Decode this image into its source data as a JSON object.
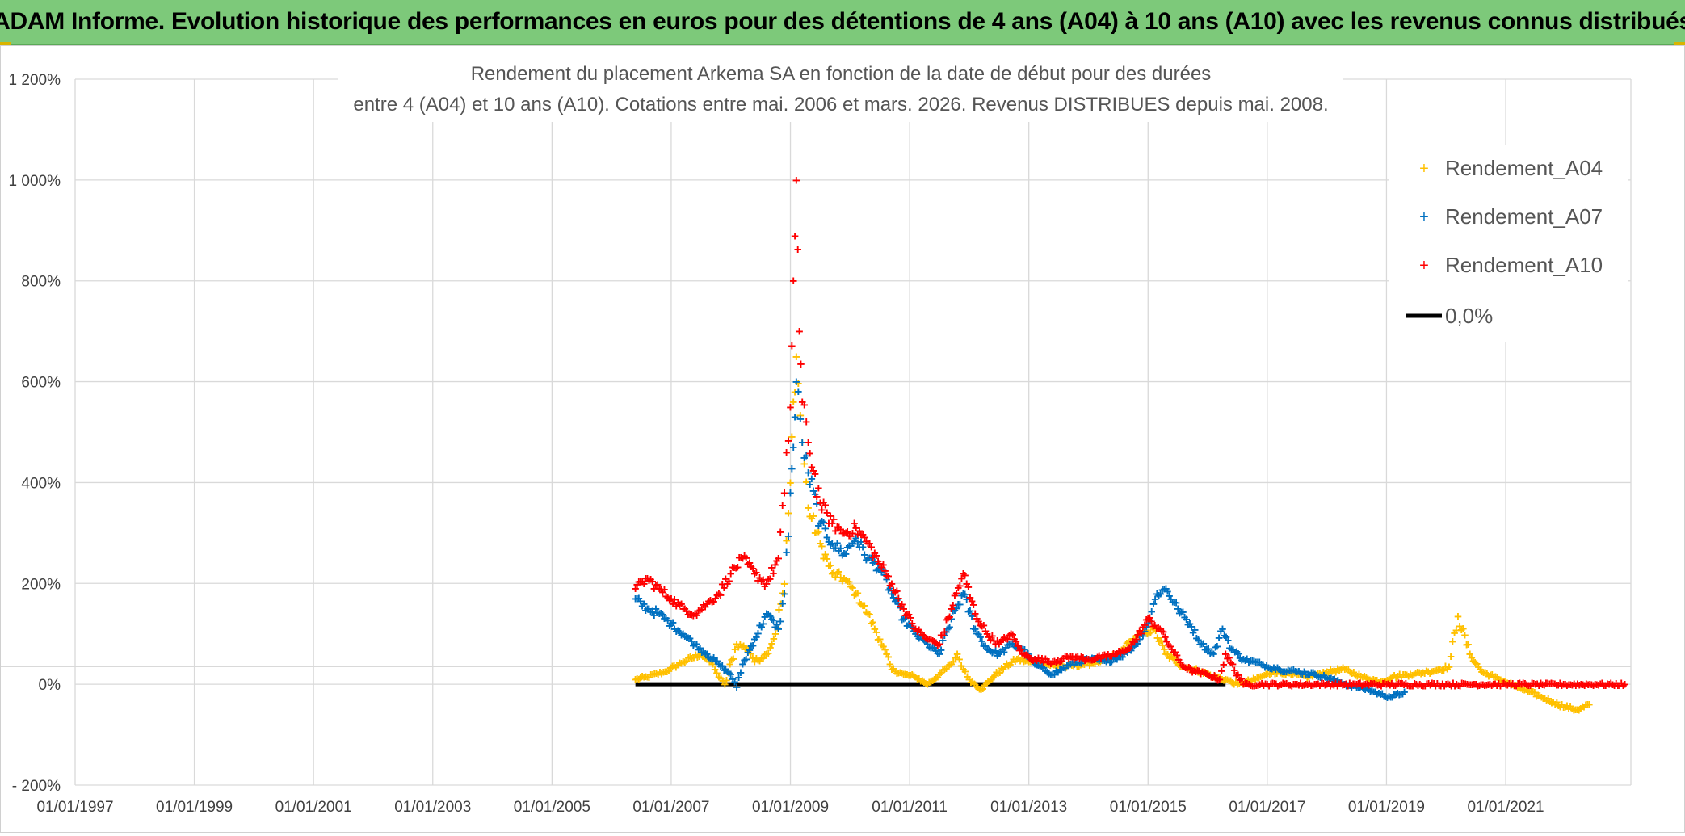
{
  "banner": {
    "title": "ADAM Informe. Evolution historique des performances en euros pour des détentions de 4 ans (A04) à 10 ans (A10) avec les revenus connus distribués"
  },
  "chart_data": {
    "type": "scatter",
    "title_lines": [
      "Rendement du placement Arkema SA en fonction de la date de début pour des durées",
      "entre 4 (A04) et 10 ans (A10). Cotations entre mai. 2006 et mars. 2026. Revenus DISTRIBUES depuis mai. 2008."
    ],
    "x_tick_labels": [
      "01/01/1997",
      "01/01/1999",
      "01/01/2001",
      "01/01/2003",
      "01/01/2005",
      "01/01/2007",
      "01/01/2009",
      "01/01/2011",
      "01/01/2013",
      "01/01/2015",
      "01/01/2017",
      "01/01/2019",
      "01/01/2021"
    ],
    "x_range_years": [
      1997,
      2023.1
    ],
    "y_tick_values": [
      -200,
      0,
      200,
      400,
      600,
      800,
      1000,
      1200
    ],
    "y_tick_labels": [
      "- 200%",
      "0%",
      "200%",
      "400%",
      "600%",
      "800%",
      "1 000%",
      "1 200%"
    ],
    "ylim": [
      -200,
      1200
    ],
    "reference_line_value": 35,
    "legend_position": "top-right",
    "marker": "+",
    "series": [
      {
        "name": "Rendement_A04",
        "color": "#ffc000",
        "x": [
          2006.4,
          2006.6,
          2006.9,
          2007.2,
          2007.5,
          2007.7,
          2007.8,
          2007.9,
          2008.1,
          2008.3,
          2008.4,
          2008.6,
          2008.75,
          2008.9,
          2009.0,
          2009.05,
          2009.1,
          2009.2,
          2009.3,
          2009.5,
          2009.7,
          2009.9,
          2010.1,
          2010.3,
          2010.5,
          2010.7,
          2010.9,
          2011.1,
          2011.3,
          2011.5,
          2011.7,
          2011.8,
          2011.9,
          2012.0,
          2012.2,
          2012.4,
          2012.6,
          2012.8,
          2013.0,
          2013.3,
          2013.6,
          2013.9,
          2014.2,
          2014.5,
          2014.7,
          2014.9,
          2015.1,
          2015.3,
          2015.6,
          2015.9,
          2016.1,
          2016.3,
          2016.5,
          2016.8,
          2017.1,
          2017.4,
          2017.7,
          2018.0,
          2018.3,
          2018.6,
          2018.9,
          2019.1,
          2019.4,
          2019.7,
          2019.9,
          2020.05,
          2020.2,
          2020.4,
          2020.6,
          2020.8,
          2021.0,
          2021.2,
          2021.4,
          2021.6,
          2021.8,
          2022.0,
          2022.2,
          2022.4
        ],
        "y": [
          10,
          15,
          25,
          45,
          60,
          40,
          15,
          0,
          80,
          70,
          45,
          60,
          100,
          200,
          400,
          560,
          650,
          480,
          350,
          280,
          220,
          210,
          180,
          140,
          90,
          30,
          20,
          15,
          0,
          20,
          40,
          60,
          30,
          10,
          -10,
          15,
          35,
          50,
          45,
          40,
          35,
          40,
          45,
          60,
          85,
          100,
          110,
          60,
          35,
          25,
          15,
          10,
          0,
          10,
          25,
          20,
          15,
          25,
          30,
          15,
          5,
          15,
          20,
          25,
          30,
          35,
          135,
          60,
          25,
          15,
          5,
          -5,
          -15,
          -25,
          -35,
          -45,
          -50,
          -40
        ]
      },
      {
        "name": "Rendement_A07",
        "color": "#0070c0",
        "x": [
          2006.4,
          2006.6,
          2006.8,
          2007.0,
          2007.2,
          2007.4,
          2007.6,
          2007.8,
          2008.0,
          2008.1,
          2008.2,
          2008.4,
          2008.6,
          2008.8,
          2008.9,
          2009.0,
          2009.05,
          2009.1,
          2009.2,
          2009.3,
          2009.5,
          2009.7,
          2009.9,
          2010.1,
          2010.3,
          2010.5,
          2010.7,
          2010.9,
          2011.1,
          2011.3,
          2011.5,
          2011.7,
          2011.9,
          2012.1,
          2012.3,
          2012.5,
          2012.7,
          2012.9,
          2013.1,
          2013.4,
          2013.7,
          2014.0,
          2014.3,
          2014.6,
          2014.8,
          2015.0,
          2015.15,
          2015.3,
          2015.5,
          2015.7,
          2015.9,
          2016.1,
          2016.25,
          2016.4,
          2016.6,
          2016.9,
          2017.2,
          2017.5,
          2017.8,
          2018.1,
          2018.3,
          2018.5,
          2018.7,
          2018.9,
          2019.1,
          2019.3
        ],
        "y": [
          170,
          150,
          140,
          120,
          100,
          80,
          60,
          40,
          20,
          -5,
          40,
          90,
          140,
          110,
          180,
          380,
          470,
          600,
          480,
          420,
          320,
          280,
          260,
          290,
          250,
          230,
          180,
          130,
          100,
          80,
          60,
          130,
          180,
          110,
          70,
          60,
          80,
          70,
          40,
          20,
          40,
          50,
          45,
          60,
          80,
          120,
          180,
          190,
          150,
          120,
          80,
          60,
          110,
          70,
          50,
          40,
          30,
          25,
          20,
          10,
          0,
          -5,
          -10,
          -20,
          -25,
          -15
        ]
      },
      {
        "name": "Rendement_A10",
        "color": "#ff0000",
        "x": [
          2006.4,
          2006.6,
          2006.8,
          2007.0,
          2007.2,
          2007.4,
          2007.6,
          2007.8,
          2008.0,
          2008.2,
          2008.4,
          2008.6,
          2008.8,
          2008.9,
          2009.0,
          2009.05,
          2009.1,
          2009.15,
          2009.2,
          2009.3,
          2009.5,
          2009.7,
          2009.9,
          2010.1,
          2010.3,
          2010.5,
          2010.7,
          2010.9,
          2011.1,
          2011.3,
          2011.5,
          2011.7,
          2011.9,
          2012.1,
          2012.3,
          2012.5,
          2012.7,
          2012.9,
          2013.1,
          2013.4,
          2013.7,
          2014.0,
          2014.3,
          2014.6,
          2014.8,
          2015.0,
          2015.2,
          2015.4,
          2015.6,
          2015.8,
          2016.0,
          2016.2,
          2016.3,
          2016.6,
          2017.0,
          2017.5,
          2018.0,
          2018.5,
          2019.0,
          2019.5,
          2020.0,
          2020.5,
          2021.0,
          2021.5,
          2022.0,
          2022.5,
          2023.0
        ],
        "y": [
          190,
          210,
          190,
          170,
          150,
          140,
          160,
          180,
          220,
          250,
          220,
          200,
          250,
          380,
          550,
          800,
          1000,
          700,
          560,
          480,
          360,
          320,
          300,
          310,
          280,
          240,
          200,
          150,
          110,
          90,
          80,
          150,
          220,
          140,
          100,
          80,
          100,
          60,
          50,
          45,
          55,
          50,
          55,
          65,
          90,
          130,
          110,
          70,
          35,
          25,
          20,
          10,
          60,
          0,
          0,
          0,
          0,
          0,
          0,
          0,
          0,
          0,
          0,
          0,
          0,
          0,
          0
        ]
      },
      {
        "name": "0,0%",
        "color": "#000000",
        "line": true,
        "x": [
          2006.4,
          2016.3
        ],
        "y": [
          0,
          0
        ]
      }
    ]
  }
}
